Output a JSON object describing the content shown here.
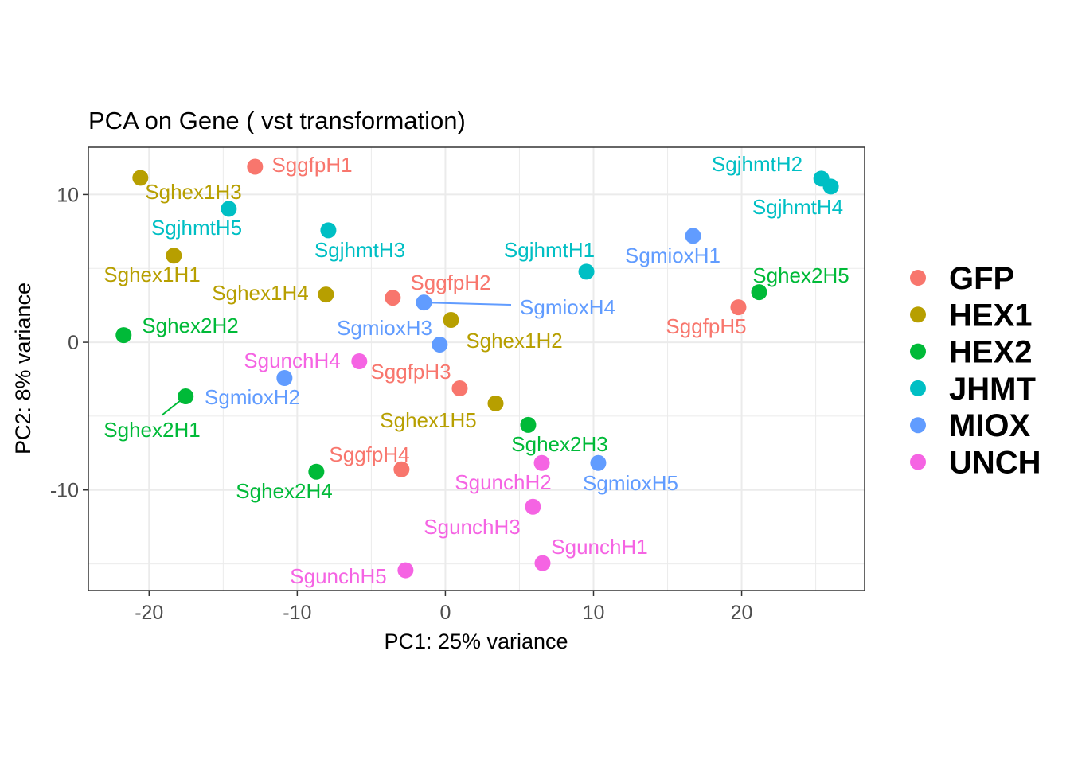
{
  "chart_data": {
    "type": "scatter",
    "title": "PCA on Gene ( vst transformation)",
    "xlabel": "PC1: 25% variance",
    "ylabel": "PC2: 8% variance",
    "xlim": [
      -24.1,
      28.3
    ],
    "ylim": [
      -16.8,
      13.2
    ],
    "xticks": [
      -20,
      -10,
      0,
      10,
      20
    ],
    "yticks": [
      -10,
      0,
      10
    ],
    "xtick_labels": [
      "-20",
      "-10",
      "0",
      "10",
      "20"
    ],
    "ytick_labels": [
      "-10",
      "0",
      "10"
    ],
    "grid": true,
    "legend_position": "right",
    "series": [
      {
        "name": "GFP",
        "color": "#F8766D",
        "points": [
          {
            "label": "SggfpH1",
            "x": -12.85,
            "y": 11.88
          },
          {
            "label": "SggfpH2",
            "x": -3.55,
            "y": 3.01
          },
          {
            "label": "SggfpH3",
            "x": 0.97,
            "y": -3.12
          },
          {
            "label": "SggfpH4",
            "x": -2.96,
            "y": -8.6
          },
          {
            "label": "SggfpH5",
            "x": 19.78,
            "y": 2.37
          }
        ]
      },
      {
        "name": "HEX1",
        "color": "#B79F00",
        "points": [
          {
            "label": "Sghex1H3",
            "x": -20.59,
            "y": 11.13
          },
          {
            "label": "Sghex1H1",
            "x": -18.33,
            "y": 5.86
          },
          {
            "label": "Sghex1H4",
            "x": -8.06,
            "y": 3.23
          },
          {
            "label": "Sghex1H2",
            "x": 0.38,
            "y": 1.51
          },
          {
            "label": "Sghex1H5",
            "x": 3.39,
            "y": -4.14
          }
        ]
      },
      {
        "name": "HEX2",
        "color": "#00BA38",
        "points": [
          {
            "label": "Sghex2H2",
            "x": -21.72,
            "y": 0.48
          },
          {
            "label": "Sghex2H1",
            "x": -17.53,
            "y": -3.66
          },
          {
            "label": "Sghex2H4",
            "x": -8.71,
            "y": -8.76
          },
          {
            "label": "Sghex2H3",
            "x": 5.59,
            "y": -5.59
          },
          {
            "label": "Sghex2H5",
            "x": 21.18,
            "y": 3.39
          }
        ]
      },
      {
        "name": "JHMT",
        "color": "#00BFC4",
        "points": [
          {
            "label": "SgjhmtH5",
            "x": -14.62,
            "y": 9.03
          },
          {
            "label": "SgjhmtH3",
            "x": -7.9,
            "y": 7.58
          },
          {
            "label": "SgjhmtH1",
            "x": 9.52,
            "y": 4.78
          },
          {
            "label": "SgjhmtH2",
            "x": 25.38,
            "y": 11.08
          },
          {
            "label": "SgjhmtH4",
            "x": 26.02,
            "y": 10.54
          }
        ]
      },
      {
        "name": "MIOX",
        "color": "#619CFF",
        "points": [
          {
            "label": "SgmioxH4",
            "x": -1.45,
            "y": 2.69
          },
          {
            "label": "SgmioxH3",
            "x": -0.38,
            "y": -0.16
          },
          {
            "label": "SgmioxH2",
            "x": -10.86,
            "y": -2.42
          },
          {
            "label": "SgmioxH5",
            "x": 10.32,
            "y": -8.17
          },
          {
            "label": "SgmioxH1",
            "x": 16.72,
            "y": 7.2
          }
        ]
      },
      {
        "name": "UNCH",
        "color": "#F564E3",
        "points": [
          {
            "label": "SgunchH4",
            "x": -5.81,
            "y": -1.29
          },
          {
            "label": "SgunchH2",
            "x": 6.51,
            "y": -8.17
          },
          {
            "label": "SgunchH3",
            "x": 5.91,
            "y": -11.13
          },
          {
            "label": "SgunchH1",
            "x": 6.56,
            "y": -14.95
          },
          {
            "label": "SgunchH5",
            "x": -2.69,
            "y": -15.43
          }
        ]
      }
    ]
  }
}
